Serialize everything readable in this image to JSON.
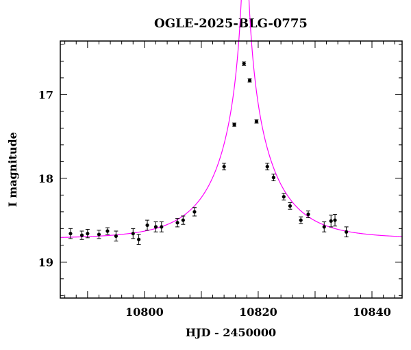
{
  "chart_data": {
    "type": "scatter",
    "title": "OGLE-2025-BLG-0775",
    "xlabel": "HJD - 2450000",
    "ylabel": "I magnitude",
    "xlim": [
      10785.2,
      10845.3
    ],
    "ylim": [
      19.43,
      16.36
    ],
    "y_inverted": true,
    "xticks_major": [
      10800,
      10820,
      10840
    ],
    "yticks_major": [
      17,
      18,
      19
    ],
    "grid": false,
    "colors": {
      "points": "#000000",
      "model": "#ff00ff"
    },
    "series": [
      {
        "kind": "points_with_errorbars",
        "x": [
          10787.0,
          10789.0,
          10790.0,
          10792.0,
          10793.5,
          10795.0,
          10798.0,
          10799.0,
          10800.5,
          10802.0,
          10803.0,
          10805.8,
          10806.8,
          10808.8,
          10814.0,
          10815.8,
          10817.5,
          10818.5,
          10819.7,
          10821.6,
          10822.7,
          10824.5,
          10825.6,
          10827.5,
          10828.8,
          10831.6,
          10832.8,
          10833.5,
          10835.5
        ],
        "y": [
          18.66,
          18.68,
          18.66,
          18.67,
          18.63,
          18.69,
          18.66,
          18.73,
          18.56,
          18.58,
          18.58,
          18.53,
          18.5,
          18.4,
          17.86,
          17.36,
          16.63,
          16.83,
          17.32,
          17.86,
          17.99,
          18.22,
          18.33,
          18.5,
          18.43,
          18.58,
          18.51,
          18.5,
          18.64
        ],
        "yerr": [
          0.06,
          0.05,
          0.05,
          0.05,
          0.04,
          0.06,
          0.06,
          0.06,
          0.06,
          0.06,
          0.06,
          0.05,
          0.05,
          0.05,
          0.04,
          0.02,
          0.02,
          0.02,
          0.02,
          0.04,
          0.04,
          0.04,
          0.04,
          0.04,
          0.04,
          0.06,
          0.07,
          0.07,
          0.06
        ]
      },
      {
        "kind": "model_curve",
        "t0": 10817.7,
        "tE": 10.0,
        "u0": 0.026,
        "I_base": 18.72
      }
    ]
  }
}
